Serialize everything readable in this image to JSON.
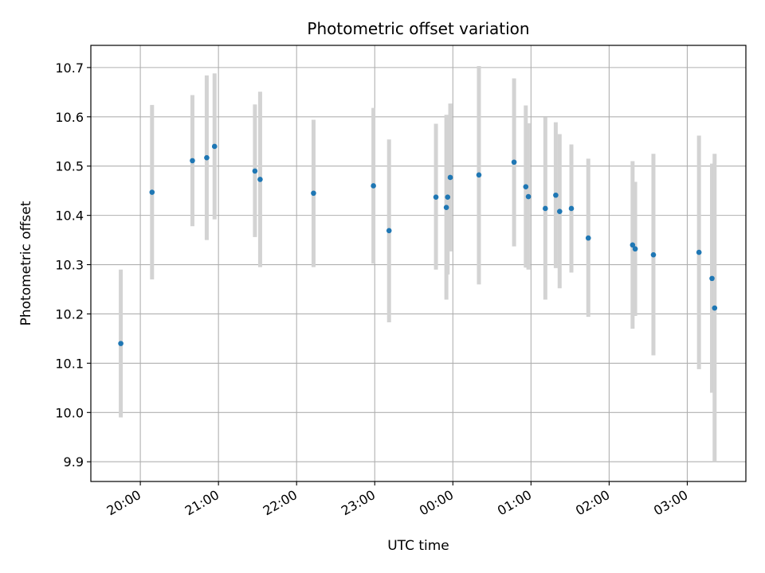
{
  "chart_data": {
    "type": "scatter",
    "title": "Photometric offset variation",
    "xlabel": "UTC time",
    "ylabel": "Photometric offset",
    "x_unit": "hours",
    "xlim": [
      "19:22",
      "03:45"
    ],
    "ylim": [
      9.86,
      10.745
    ],
    "yticks": [
      "9.9",
      "10.0",
      "10.1",
      "10.2",
      "10.3",
      "10.4",
      "10.5",
      "10.6",
      "10.7"
    ],
    "xticks": [
      {
        "value": "20:00",
        "label": "20:00"
      },
      {
        "value": "21:00",
        "label": "21:00"
      },
      {
        "value": "22:00",
        "label": "22:00"
      },
      {
        "value": "23:00",
        "label": "23:00"
      },
      {
        "value": "00:00",
        "label": "00:00"
      },
      {
        "value": "01:00",
        "label": "01:00"
      },
      {
        "value": "02:00",
        "label": "02:00"
      },
      {
        "value": "03:00",
        "label": "03:00"
      }
    ],
    "grid": true,
    "point_color": "#1f77b4",
    "errorbar_color": "#d3d3d3",
    "points": [
      {
        "x": "19:45",
        "y": 10.14,
        "ymin": 9.99,
        "ymax": 10.29
      },
      {
        "x": "20:09",
        "y": 10.447,
        "ymin": 10.27,
        "ymax": 10.624
      },
      {
        "x": "20:40",
        "y": 10.511,
        "ymin": 10.378,
        "ymax": 10.644
      },
      {
        "x": "20:51",
        "y": 10.517,
        "ymin": 10.35,
        "ymax": 10.684
      },
      {
        "x": "20:57",
        "y": 10.54,
        "ymin": 10.392,
        "ymax": 10.688
      },
      {
        "x": "21:28",
        "y": 10.49,
        "ymin": 10.356,
        "ymax": 10.625
      },
      {
        "x": "21:32",
        "y": 10.473,
        "ymin": 10.295,
        "ymax": 10.651
      },
      {
        "x": "22:13",
        "y": 10.445,
        "ymin": 10.295,
        "ymax": 10.594
      },
      {
        "x": "22:59",
        "y": 10.46,
        "ymin": 10.302,
        "ymax": 10.618
      },
      {
        "x": "23:11",
        "y": 10.369,
        "ymin": 10.183,
        "ymax": 10.554
      },
      {
        "x": "23:47",
        "y": 10.437,
        "ymin": 10.29,
        "ymax": 10.586
      },
      {
        "x": "23:55",
        "y": 10.416,
        "ymin": 10.229,
        "ymax": 10.604
      },
      {
        "x": "23:56",
        "y": 10.437,
        "ymin": 10.28,
        "ymax": 10.593
      },
      {
        "x": "23:58",
        "y": 10.477,
        "ymin": 10.327,
        "ymax": 10.627
      },
      {
        "x": "00:20",
        "y": 10.482,
        "ymin": 10.26,
        "ymax": 10.703
      },
      {
        "x": "00:47",
        "y": 10.508,
        "ymin": 10.337,
        "ymax": 10.678
      },
      {
        "x": "00:56",
        "y": 10.458,
        "ymin": 10.294,
        "ymax": 10.623
      },
      {
        "x": "00:58",
        "y": 10.438,
        "ymin": 10.29,
        "ymax": 10.587
      },
      {
        "x": "01:11",
        "y": 10.414,
        "ymin": 10.229,
        "ymax": 10.599
      },
      {
        "x": "01:19",
        "y": 10.441,
        "ymin": 10.293,
        "ymax": 10.589
      },
      {
        "x": "01:22",
        "y": 10.408,
        "ymin": 10.252,
        "ymax": 10.565
      },
      {
        "x": "01:31",
        "y": 10.414,
        "ymin": 10.284,
        "ymax": 10.544
      },
      {
        "x": "01:44",
        "y": 10.354,
        "ymin": 10.194,
        "ymax": 10.515
      },
      {
        "x": "02:18",
        "y": 10.34,
        "ymin": 10.17,
        "ymax": 10.51
      },
      {
        "x": "02:20",
        "y": 10.332,
        "ymin": 10.196,
        "ymax": 10.468
      },
      {
        "x": "02:34",
        "y": 10.32,
        "ymin": 10.116,
        "ymax": 10.525
      },
      {
        "x": "03:09",
        "y": 10.325,
        "ymin": 10.088,
        "ymax": 10.562
      },
      {
        "x": "03:19",
        "y": 10.272,
        "ymin": 10.04,
        "ymax": 10.505
      },
      {
        "x": "03:21",
        "y": 10.212,
        "ymin": 9.9,
        "ymax": 10.525
      }
    ]
  }
}
